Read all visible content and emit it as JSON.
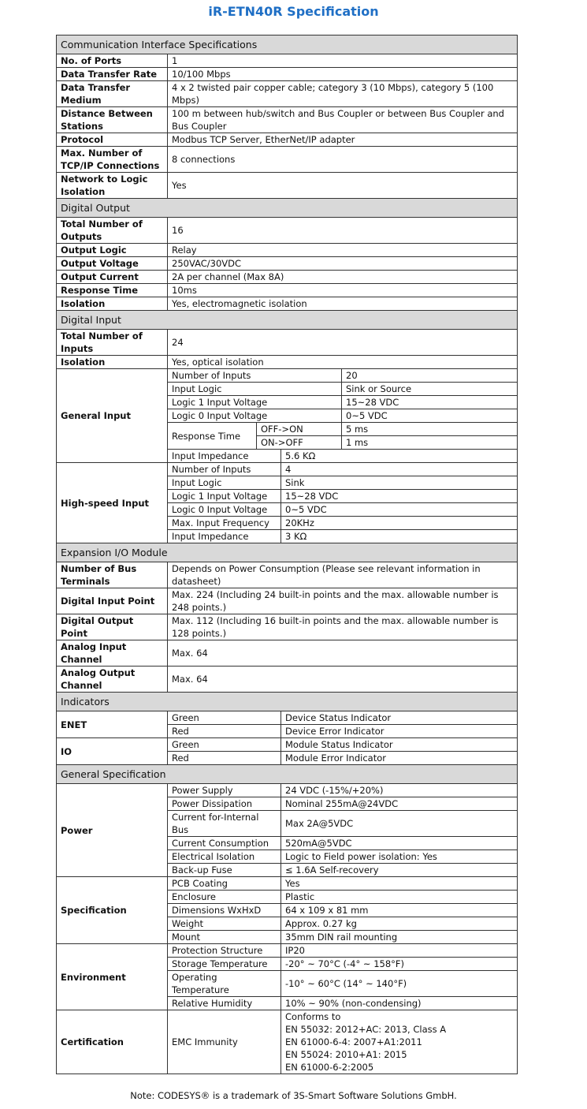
{
  "title": "iR-ETN40R Specification",
  "sections": [
    {
      "heading": "Communication Interface Specifications",
      "rows": [
        [
          "No. of Ports",
          "1"
        ],
        [
          "Data Transfer Rate",
          "10/100 Mbps"
        ],
        [
          "Data Transfer Medium",
          "4 x 2 twisted pair copper cable; category 3 (10 Mbps), category 5 (100 Mbps)"
        ],
        [
          "Distance Between Stations",
          "100 m between hub/switch and Bus Coupler or between Bus Coupler and Bus Coupler"
        ],
        [
          "Protocol",
          "Modbus TCP Server, EtherNet/IP adapter"
        ],
        [
          "Max. Number of TCP/IP Connections",
          "8 connections"
        ],
        [
          "Network to Logic Isolation",
          "Yes"
        ]
      ]
    },
    {
      "heading": "Digital Output",
      "rows": [
        [
          "Total Number of Outputs",
          "16"
        ],
        [
          "Output Logic",
          "Relay"
        ],
        [
          "Output Voltage",
          "250VAC/30VDC"
        ],
        [
          "Output Current",
          "2A per channel (Max 8A)"
        ],
        [
          "Response Time",
          "10ms"
        ],
        [
          "Isolation",
          "Yes, electromagnetic isolation"
        ]
      ]
    },
    {
      "heading": "Digital Input",
      "rows": [
        [
          "Total Number of Inputs",
          "24"
        ],
        [
          "Isolation",
          "Yes, optical isolation"
        ]
      ],
      "general_input": {
        "label": "General Input",
        "rows": [
          [
            "Number of Inputs",
            "20"
          ],
          [
            "Input Logic",
            "Sink or Source"
          ],
          [
            "Logic 1 Input Voltage",
            "15~28 VDC"
          ],
          [
            "Logic 0 Input Voltage",
            "0~5 VDC"
          ]
        ],
        "response_time": {
          "label": "Response Time",
          "rows": [
            [
              "OFF->ON",
              "5 ms"
            ],
            [
              "ON->OFF",
              "1 ms"
            ]
          ]
        },
        "impedance": [
          "Input Impedance",
          "5.6 KΩ"
        ]
      },
      "groups": [
        {
          "label": "High-speed Input",
          "rows": [
            [
              "Number of Inputs",
              "4"
            ],
            [
              "Input Logic",
              "Sink"
            ],
            [
              "Logic 1 Input Voltage",
              "15~28 VDC"
            ],
            [
              "Logic 0 Input Voltage",
              "0~5 VDC"
            ],
            [
              "Max. Input Frequency",
              "20KHz"
            ],
            [
              "Input Impedance",
              "3 KΩ"
            ]
          ]
        }
      ]
    },
    {
      "heading": "Expansion I/O Module",
      "rows": [
        [
          "Number of Bus Terminals",
          "Depends on Power Consumption (Please see relevant information in datasheet)"
        ],
        [
          "Digital Input Point",
          "Max. 224 (Including 24 built-in points and the max. allowable number is 248 points.)"
        ],
        [
          "Digital Output Point",
          "Max. 112 (Including 16 built-in points and the max. allowable number is 128 points.)"
        ],
        [
          "Analog Input Channel",
          "Max. 64"
        ],
        [
          "Analog Output Channel",
          "Max. 64"
        ]
      ]
    },
    {
      "heading": "Indicators",
      "groups": [
        {
          "label": "ENET",
          "rows": [
            [
              "Green",
              "Device Status Indicator"
            ],
            [
              "Red",
              "Device Error Indicator"
            ]
          ]
        },
        {
          "label": "IO",
          "rows": [
            [
              "Green",
              "Module Status Indicator"
            ],
            [
              "Red",
              "Module Error Indicator"
            ]
          ]
        }
      ]
    },
    {
      "heading": "General Specification",
      "groups": [
        {
          "label": "Power",
          "rows": [
            [
              "Power Supply",
              "24 VDC (-15%/+20%)"
            ],
            [
              "Power Dissipation",
              "Nominal 255mA@24VDC"
            ],
            [
              "Current for-Internal Bus",
              "Max 2A@5VDC"
            ],
            [
              "Current Consumption",
              "520mA@5VDC"
            ],
            [
              "Electrical Isolation",
              "Logic to Field power isolation: Yes"
            ],
            [
              "Back-up Fuse",
              "≤ 1.6A Self-recovery"
            ]
          ]
        },
        {
          "label": "Specification",
          "rows": [
            [
              "PCB Coating",
              "Yes"
            ],
            [
              "Enclosure",
              "Plastic"
            ],
            [
              "Dimensions WxHxD",
              "64 x 109 x 81 mm"
            ],
            [
              "Weight",
              "Approx. 0.27 kg"
            ],
            [
              "Mount",
              "35mm DIN rail mounting"
            ]
          ]
        },
        {
          "label": "Environment",
          "rows": [
            [
              "Protection Structure",
              "IP20"
            ],
            [
              "Storage Temperature",
              "-20° ~ 70°C (-4° ~ 158°F)"
            ],
            [
              "Operating Temperature",
              "-10° ~ 60°C (14° ~ 140°F)"
            ],
            [
              "Relative Humidity",
              "10% ~ 90% (non-condensing)"
            ]
          ]
        },
        {
          "label": "Certification",
          "rows": [
            [
              "EMC Immunity",
              [
                "Conforms to",
                "EN 55032: 2012+AC: 2013, Class A",
                "EN 61000-6-4: 2007+A1:2011",
                "EN 55024: 2010+A1: 2015",
                "EN 61000-6-2:2005"
              ]
            ]
          ]
        }
      ]
    }
  ],
  "note": "Note: CODESYS® is a trademark of 3S-Smart Software Solutions GmbH."
}
